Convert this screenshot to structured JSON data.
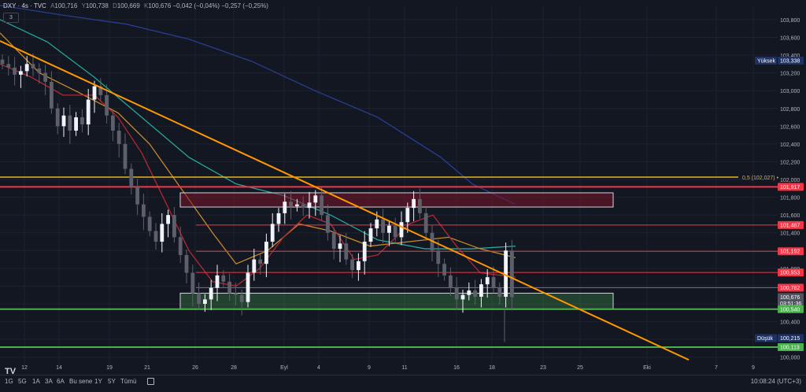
{
  "header": {
    "symbol": "DXY · 4s · TVC",
    "o_label": "A",
    "o": "100,716",
    "h_label": "Y",
    "h": "100,738",
    "l_label": "D",
    "l": "100,669",
    "c_label": "K",
    "c": "100,676",
    "change": "−0,042 (−0,04%)",
    "change2": "−0,257 (−0,25%)"
  },
  "indicator_count": "3",
  "colors": {
    "background": "#131722",
    "grid": "#1e222d",
    "up": "#f0f3fa",
    "down": "#5d606b",
    "red_line": "#f23645",
    "green_line": "#4caf50",
    "orange_trend": "#ff9800",
    "gold_line": "#e6b422",
    "ma_navy": "#283d8f",
    "ma_teal": "#26a69a",
    "ma_orange": "#c7892a",
    "ma_red": "#b22833"
  },
  "bottom_bar": {
    "timeframes": [
      "1G",
      "5G",
      "1A",
      "3A",
      "6A",
      "Bu sene",
      "1Y",
      "5Y",
      "Tümü"
    ],
    "calendar_icon": "calendar-icon",
    "time": "10:08:24 (UTC+3)"
  },
  "chart_data": {
    "type": "candlestick",
    "title": "",
    "y_axis": {
      "ticks": [
        "103,800",
        "103,600",
        "103,400",
        "103,200",
        "103,000",
        "102,800",
        "102,600",
        "102,400",
        "102,200",
        "102,000",
        "101,800",
        "101,600",
        "101,400",
        "101,200",
        "101,000",
        "100,800",
        "100,600",
        "100,400",
        "100,200",
        "100,000"
      ],
      "range": [
        99.9,
        103.95
      ]
    },
    "x_axis": {
      "ticks": [
        "12",
        "14",
        "19",
        "21",
        "26",
        "28",
        "Eyl",
        "4",
        "9",
        "11",
        "16",
        "18",
        "23",
        "25",
        "Eki",
        "7",
        "9"
      ]
    },
    "price_labels": [
      {
        "text": "Yüksek",
        "value": "103,338",
        "type": "dark"
      },
      {
        "text": "0,5 (102,027)",
        "value": "102,027",
        "type": "gold"
      },
      {
        "text": "",
        "value": "101,917",
        "type": "red"
      },
      {
        "text": "",
        "value": "101,487",
        "type": "red"
      },
      {
        "text": "",
        "value": "101,192",
        "type": "red"
      },
      {
        "text": "",
        "value": "100,953",
        "type": "red"
      },
      {
        "text": "",
        "value": "100,782",
        "type": "red"
      },
      {
        "text": "",
        "value": "100,676",
        "sub": "03:51:36",
        "type": "current"
      },
      {
        "text": "",
        "value": "100,540",
        "type": "green"
      },
      {
        "text": "Düşük",
        "value": "100,215",
        "type": "dark"
      },
      {
        "text": "",
        "value": "100,113",
        "type": "green"
      }
    ],
    "horizontal_lines": [
      {
        "value": 102.027,
        "style": "gold"
      },
      {
        "value": 101.917,
        "style": "red_full"
      },
      {
        "value": 101.487,
        "style": "red_partial"
      },
      {
        "value": 101.192,
        "style": "red_partial"
      },
      {
        "value": 100.953,
        "style": "red_partial"
      },
      {
        "value": 100.782,
        "style": "red_partial"
      },
      {
        "value": 100.54,
        "style": "green_full"
      },
      {
        "value": 100.113,
        "style": "green_full"
      }
    ],
    "zones": [
      {
        "from": 101.69,
        "to": 101.85,
        "color": "resistance"
      },
      {
        "from": 100.54,
        "to": 100.72,
        "color": "support"
      }
    ],
    "trendline": {
      "start": [
        0,
        103.56
      ],
      "end": [
        29.5,
        99.97
      ]
    },
    "series_close": [
      103.3,
      103.26,
      103.18,
      103.22,
      103.3,
      103.25,
      103.2,
      103.1,
      102.8,
      102.6,
      102.72,
      102.55,
      102.7,
      102.62,
      102.9,
      103.05,
      102.95,
      102.72,
      102.55,
      102.4,
      102.12,
      101.92,
      101.72,
      101.58,
      101.42,
      101.3,
      101.5,
      101.6,
      101.35,
      101.15,
      100.95,
      100.72,
      100.6,
      100.65,
      100.78,
      100.92,
      100.85,
      100.72,
      100.7,
      100.62,
      100.95,
      101.1,
      101.05,
      101.3,
      101.5,
      101.62,
      101.75,
      101.7,
      101.72,
      101.68,
      101.74,
      101.82,
      101.6,
      101.4,
      101.22,
      101.28,
      101.1,
      100.98,
      101.08,
      101.3,
      101.45,
      101.55,
      101.4,
      101.48,
      101.35,
      101.52,
      101.68,
      101.78,
      101.62,
      101.4,
      101.2,
      101.05,
      100.92,
      100.78,
      100.65,
      100.7,
      100.75,
      100.68,
      100.82,
      100.9,
      100.78,
      100.68,
      101.2,
      100.676
    ]
  }
}
